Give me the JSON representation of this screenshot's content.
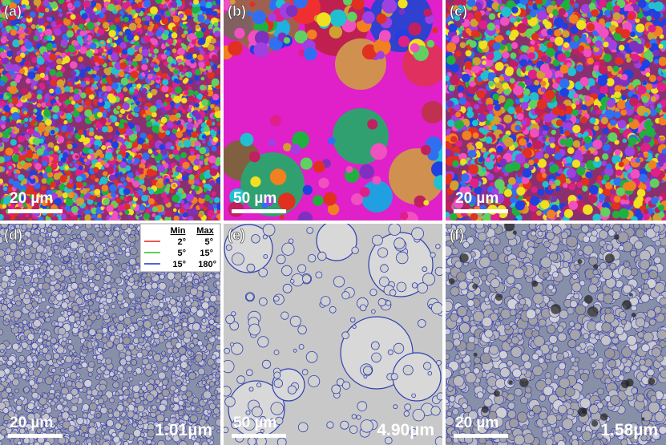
{
  "panels": [
    {
      "label": "(a)",
      "scale_bar": "20 µm"
    },
    {
      "label": "(b)",
      "scale_bar": "50 µm"
    },
    {
      "label": "(c)",
      "scale_bar": "20 µm"
    },
    {
      "label": "(d)",
      "scale_bar": "20 µm",
      "grain_size": "1.01µm"
    },
    {
      "label": "(e)",
      "scale_bar": "50 µm",
      "grain_size": "4.90µm"
    },
    {
      "label": "(f)",
      "scale_bar": "20 µm",
      "grain_size": "1.58µm"
    }
  ],
  "legend": {
    "headers": [
      "Min",
      "Max"
    ],
    "rows": [
      {
        "min": "2°",
        "max": "5°"
      },
      {
        "min": "5°",
        "max": "15°"
      },
      {
        "min": "15°",
        "max": "180°"
      }
    ]
  }
}
